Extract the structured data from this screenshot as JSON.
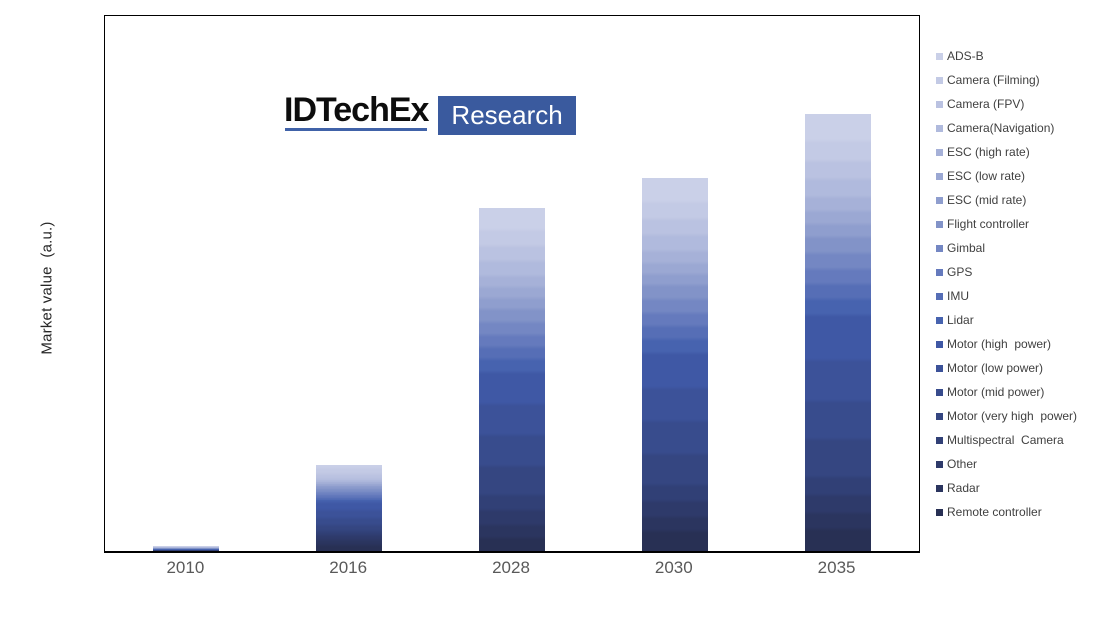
{
  "branding": {
    "name": "IDTechEx",
    "sub": "Research"
  },
  "chart_data": {
    "type": "bar",
    "stacked": true,
    "title": "",
    "xlabel": "",
    "ylabel": "Market value  (a.u.)",
    "units": "a.u.",
    "grid": false,
    "legend_position": "right",
    "y_axis_tick_labels": [],
    "categories": [
      "2010",
      "2016",
      "2028",
      "2030",
      "2035"
    ],
    "series": [
      {
        "name": "ADS-B",
        "color": "#cad0e8",
        "values": [
          0.2,
          1,
          20,
          22,
          25
        ]
      },
      {
        "name": "Camera (Filming)",
        "color": "#c3cae5",
        "values": [
          0.5,
          6,
          16,
          17,
          20
        ]
      },
      {
        "name": "Camera (FPV)",
        "color": "#bac2e1",
        "values": [
          0.4,
          5,
          15,
          16,
          18
        ]
      },
      {
        "name": "Camera(Navigation)",
        "color": "#b0badd",
        "values": [
          0.3,
          3,
          15,
          16,
          18
        ]
      },
      {
        "name": "ESC (high rate)",
        "color": "#a6b1d8",
        "values": [
          0.2,
          2,
          11,
          12,
          14
        ]
      },
      {
        "name": "ESC (low rate)",
        "color": "#9ba8d3",
        "values": [
          0.2,
          2,
          11,
          11,
          13
        ]
      },
      {
        "name": "ESC (mid rate)",
        "color": "#8f9ece",
        "values": [
          0.2,
          2,
          11,
          11,
          13
        ]
      },
      {
        "name": "Flight controller",
        "color": "#8293c8",
        "values": [
          0.3,
          3,
          13,
          14,
          16
        ]
      },
      {
        "name": "Gimbal",
        "color": "#7487c3",
        "values": [
          0.3,
          3,
          13,
          14,
          16
        ]
      },
      {
        "name": "GPS",
        "color": "#657abd",
        "values": [
          0.3,
          3,
          12,
          13,
          15
        ]
      },
      {
        "name": "IMU",
        "color": "#566eb6",
        "values": [
          0.3,
          3,
          12,
          13,
          15
        ]
      },
      {
        "name": "Lidar",
        "color": "#4763af",
        "values": [
          0.2,
          2,
          13,
          14,
          16
        ]
      },
      {
        "name": "Motor (high  power)",
        "color": "#3f58a5",
        "values": [
          0.3,
          8,
          32,
          35,
          45
        ]
      },
      {
        "name": "Motor (low power)",
        "color": "#3c5299",
        "values": [
          0.3,
          8,
          31,
          33,
          41
        ]
      },
      {
        "name": "Motor (mid power)",
        "color": "#384c8d",
        "values": [
          0.3,
          7,
          31,
          33,
          38
        ]
      },
      {
        "name": "Motor (very high  power)",
        "color": "#354681",
        "values": [
          0.2,
          6,
          29,
          31,
          38
        ]
      },
      {
        "name": "Multispectral  Camera",
        "color": "#314076",
        "values": [
          0.1,
          4,
          15,
          16,
          18
        ]
      },
      {
        "name": "Other",
        "color": "#2e3a6a",
        "values": [
          0.1,
          5,
          15,
          16,
          18
        ]
      },
      {
        "name": "Radar",
        "color": "#2b355f",
        "values": [
          0.1,
          5,
          13,
          14,
          16
        ]
      },
      {
        "name": "Remote controller",
        "color": "#283054",
        "values": [
          0.2,
          8,
          15,
          22,
          24
        ]
      }
    ]
  }
}
